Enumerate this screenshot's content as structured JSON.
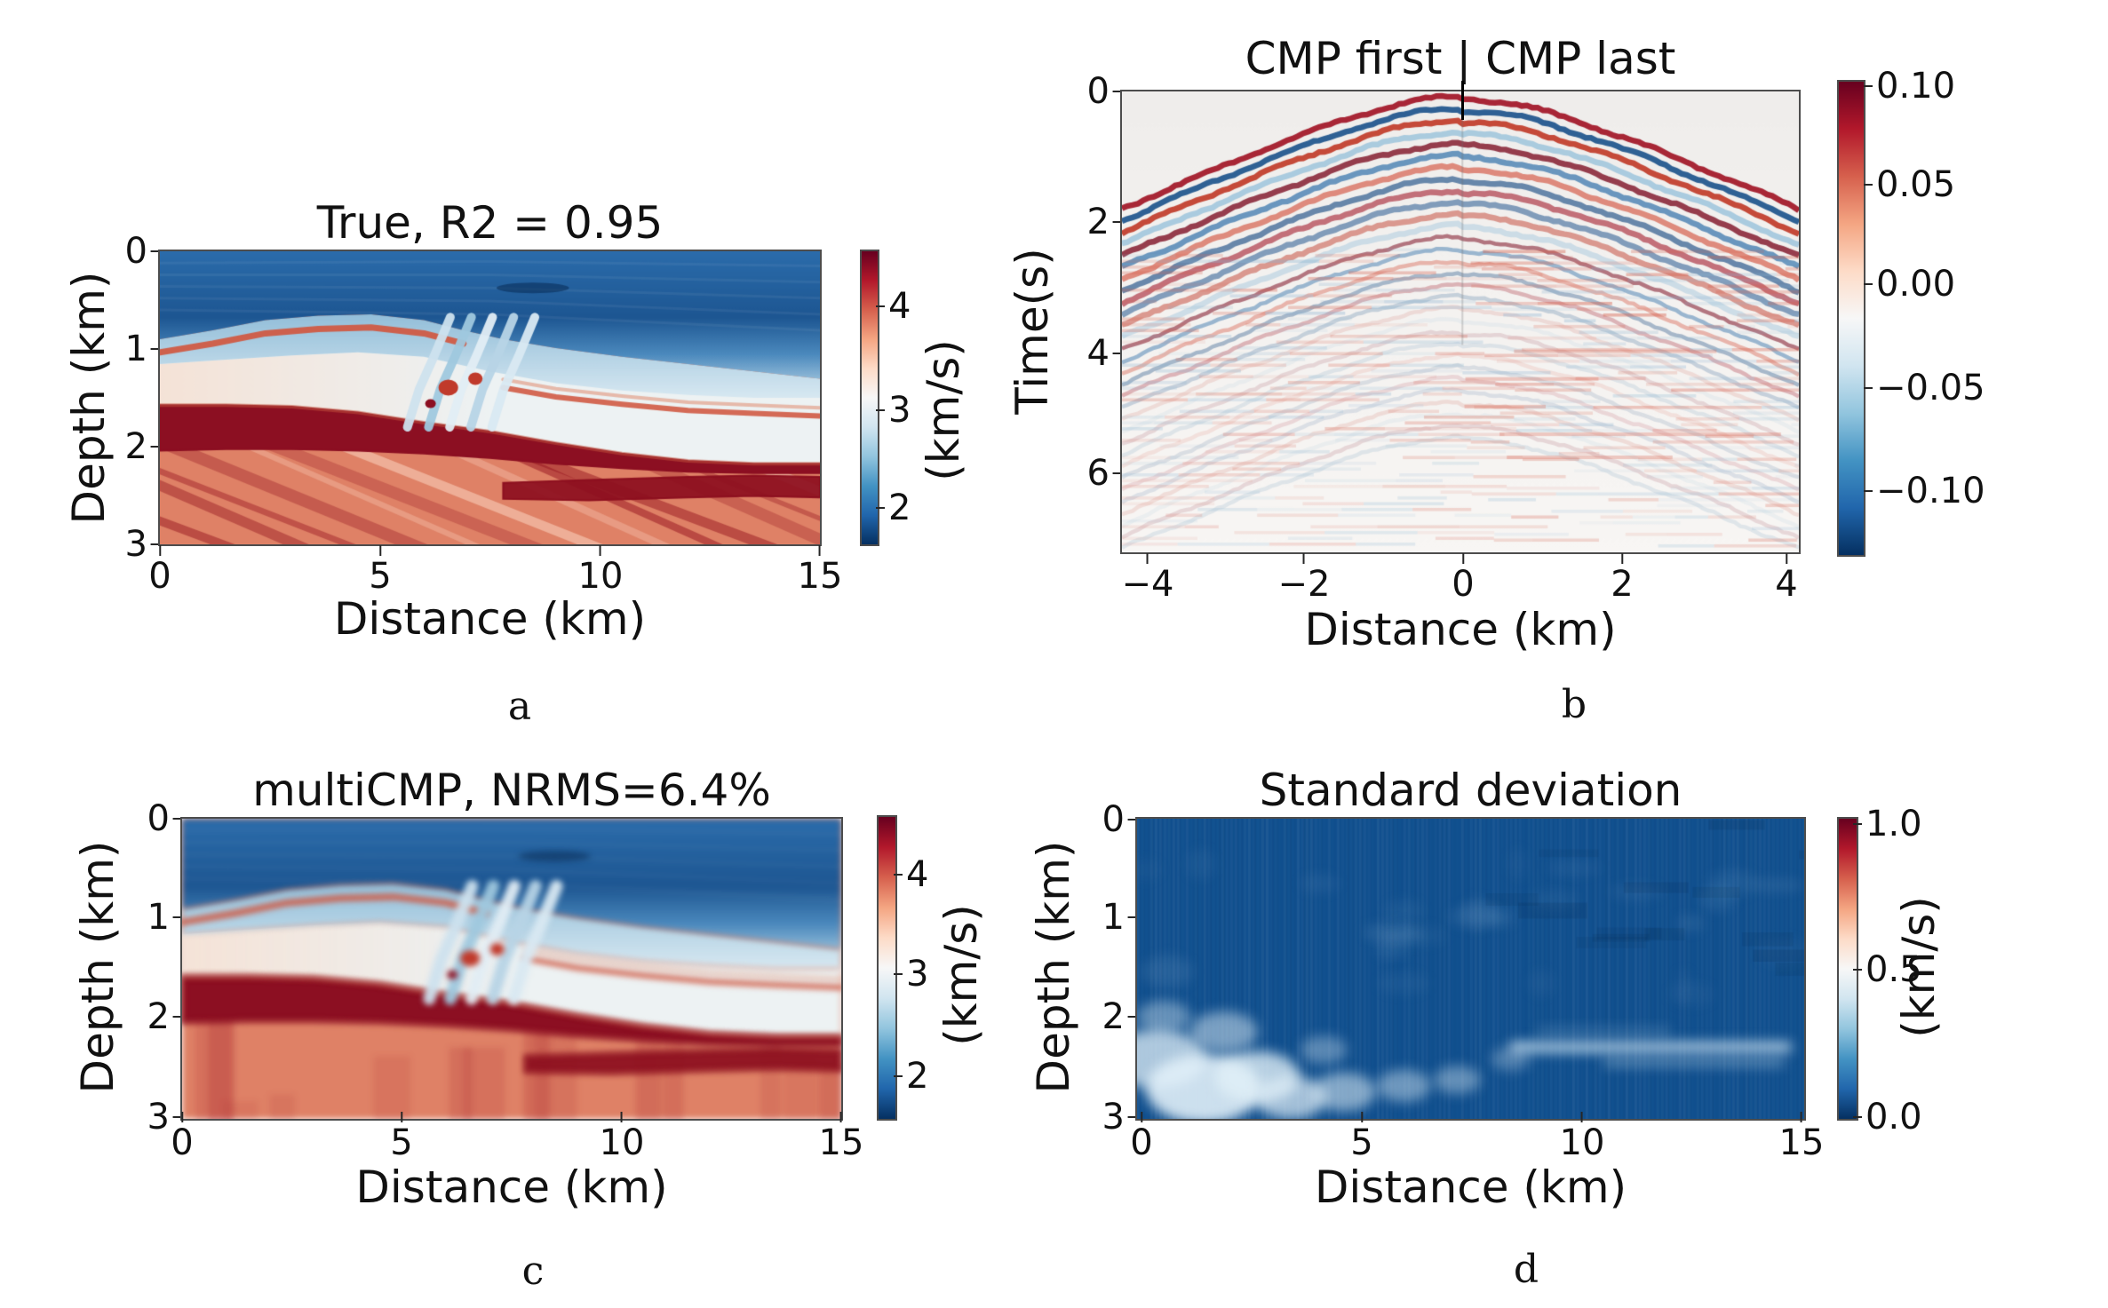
{
  "colors": {
    "background": "#ffffff",
    "axis": "#4d4d4d",
    "text": "#111111",
    "rdbu_r_stops": [
      "#67001f",
      "#b2182b",
      "#d6604d",
      "#f4a582",
      "#fddbc7",
      "#f7f7f7",
      "#d1e5f0",
      "#92c5de",
      "#4393c3",
      "#2166ac",
      "#053061"
    ]
  },
  "captions": {
    "a": "a",
    "b": "b",
    "c": "c",
    "d": "d"
  },
  "chart_data": [
    {
      "id": "a",
      "type": "heatmap",
      "title": "True, R2 = 0.95",
      "xlabel": "Distance (km)",
      "ylabel": "Depth (km)",
      "xlim": [
        0,
        15
      ],
      "ylim": [
        3,
        0
      ],
      "xticks": [
        0,
        5,
        10,
        15
      ],
      "xtick_labels": [
        "0",
        "5",
        "10",
        "15"
      ],
      "yticks": [
        0,
        1,
        2,
        3
      ],
      "ytick_labels": [
        "0",
        "1",
        "2",
        "3"
      ],
      "colorbar": {
        "label": "(km/s)",
        "ticks": [
          4,
          3,
          2
        ],
        "tick_labels": [
          "4",
          "3",
          "2"
        ],
        "vmin": 1.5,
        "vmax": 4.7,
        "colormap": "RdBu_r"
      },
      "content_summary": "True subsurface P-wave velocity model: slow (blue) shallow layers above 1 km, thin fast salmon streaks near 1 km, thick dark-red fast layer near 2 km on the left thinning rightward, fast red deep section with dipping stratification and a central low-velocity diapir of tilted light-blue fingers"
    },
    {
      "id": "b",
      "type": "heatmap",
      "title": "CMP first | CMP last",
      "xlabel": "Distance (km)",
      "ylabel": "Time(s)",
      "xlim": [
        -4.3,
        4.2
      ],
      "ylim": [
        7.1,
        0
      ],
      "xticks": [
        -4,
        -2,
        0,
        2,
        4
      ],
      "xtick_labels": [
        "−4",
        "−2",
        "0",
        "2",
        "4"
      ],
      "yticks": [
        0,
        2,
        4,
        6
      ],
      "ytick_labels": [
        "0",
        "2",
        "4",
        "6"
      ],
      "colorbar": {
        "label": "",
        "ticks": [
          0.1,
          0.05,
          0.0,
          -0.05,
          -0.1
        ],
        "tick_labels": [
          "0.10",
          "0.05",
          "0.00",
          "−0.05",
          "−0.10"
        ],
        "vmin": -0.1,
        "vmax": 0.1,
        "colormap": "RdBu_r"
      },
      "content_summary": "Two CMP gathers shown side by side split at zero offset: chevron-shaped reflection events with apex at the top center, strong alternating red/blue bands between about 1.5 and 3 s, faint horizontal red/blue striping at later times on a light gray background"
    },
    {
      "id": "c",
      "type": "heatmap",
      "title": "multiCMP, NRMS=6.4%",
      "xlabel": "Distance (km)",
      "ylabel": "Depth (km)",
      "xlim": [
        0,
        15
      ],
      "ylim": [
        3,
        0
      ],
      "xticks": [
        0,
        5,
        10,
        15
      ],
      "xtick_labels": [
        "0",
        "5",
        "10",
        "15"
      ],
      "yticks": [
        0,
        1,
        2,
        3
      ],
      "ytick_labels": [
        "0",
        "1",
        "2",
        "3"
      ],
      "colorbar": {
        "label": "(km/s)",
        "ticks": [
          4,
          3,
          2
        ],
        "tick_labels": [
          "4",
          "3",
          "2"
        ],
        "vmin": 1.5,
        "vmax": 4.7,
        "colormap": "RdBu_r"
      },
      "content_summary": "Predicted velocity model from multiCMP inversion: smoothed version of the true model with the same blue shallow layers, dark-red fast band near 2 km and red deep section, but blurrier with vertical smearing in the deep part"
    },
    {
      "id": "d",
      "type": "heatmap",
      "title": "Standard deviation",
      "xlabel": "Distance (km)",
      "ylabel": "Depth (km)",
      "xlim": [
        0,
        15
      ],
      "ylim": [
        3,
        0
      ],
      "xticks": [
        0,
        5,
        10,
        15
      ],
      "xtick_labels": [
        "0",
        "5",
        "10",
        "15"
      ],
      "yticks": [
        0,
        1,
        2,
        3
      ],
      "ytick_labels": [
        "0",
        "1",
        "2",
        "3"
      ],
      "colorbar": {
        "label": "(km/s)",
        "ticks": [
          1.0,
          0.5,
          0.0
        ],
        "tick_labels": [
          "1.0",
          "0.5",
          "0.0"
        ],
        "vmin": 0.0,
        "vmax": 1.0,
        "colormap": "RdBu_r"
      },
      "content_summary": "Prediction uncertainty map: mostly near-zero (dark blue) with higher standard deviation (lighter blue/white patches) in the bottom-left deep region below 2 km and a light horizontal streak near 2.3 km depth on the right side"
    }
  ]
}
